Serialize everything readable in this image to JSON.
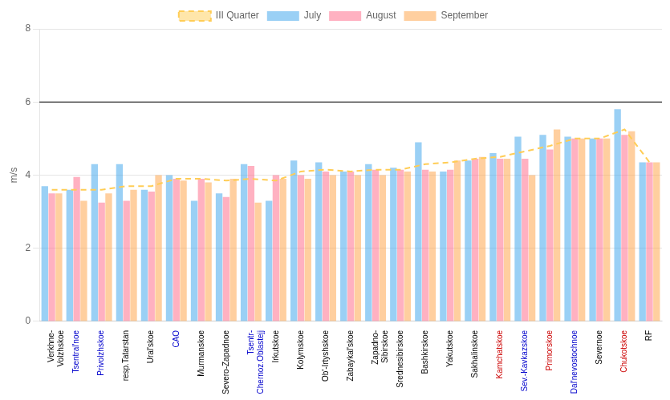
{
  "chart_data": {
    "type": "bar",
    "categories": [
      "Verkhne-\nVolzhskoe",
      "Tsentral'noe",
      "Privolzhskoe",
      "resp.Tatarstan",
      "Ural'skoe",
      "CAO",
      "Murmanskoe",
      "Severo-Zapadnoe",
      "Tsentr-\nChernoz.Oblastejj",
      "Irkutskoe",
      "Kolymskoe",
      "Ob'-Irtyshskoe",
      "Zabaykal'skoe",
      "Zapadno-\nSibirskoe",
      "Srednesibirskoe",
      "Bashkirskoe",
      "Yakutskoe",
      "Sakhalinskoe",
      "Kamchatskoe",
      "Sev.-Kavkazskoe",
      "Primorskoe",
      "Dal'nevostochnoe",
      "Severnoe",
      "Chukotskoe",
      "RF"
    ],
    "series": [
      {
        "name": "July",
        "values": [
          3.7,
          3.6,
          4.3,
          4.3,
          3.6,
          4.0,
          3.3,
          3.5,
          4.3,
          3.3,
          4.4,
          4.35,
          4.1,
          4.3,
          4.2,
          4.9,
          4.1,
          4.4,
          4.6,
          5.05,
          5.1,
          5.05,
          5.0,
          5.8,
          4.35
        ]
      },
      {
        "name": "August",
        "values": [
          3.5,
          3.95,
          3.25,
          3.3,
          3.55,
          3.9,
          3.9,
          3.4,
          4.25,
          4.0,
          4.0,
          4.1,
          4.1,
          4.15,
          4.15,
          4.15,
          4.15,
          4.45,
          4.45,
          4.45,
          4.7,
          5.0,
          5.0,
          5.1,
          4.35
        ]
      },
      {
        "name": "September",
        "values": [
          3.5,
          3.3,
          3.5,
          3.6,
          4.0,
          3.85,
          3.8,
          3.9,
          3.25,
          3.9,
          3.9,
          4.0,
          4.0,
          4.0,
          4.1,
          4.1,
          4.4,
          4.5,
          4.45,
          4.0,
          5.25,
          5.0,
          5.0,
          5.2,
          4.35
        ]
      },
      {
        "name": "III Quarter",
        "type": "line",
        "line_style": "dashed",
        "values": [
          3.6,
          3.6,
          3.6,
          3.7,
          3.7,
          3.9,
          3.9,
          3.85,
          3.9,
          3.85,
          4.1,
          4.15,
          4.1,
          4.15,
          4.15,
          4.3,
          4.35,
          4.45,
          4.5,
          4.65,
          4.8,
          5.0,
          5.0,
          5.25,
          4.35
        ]
      }
    ],
    "ylabel": "m/s",
    "ylim": [
      0,
      8
    ],
    "yticks": [
      0,
      2,
      4,
      6,
      8
    ],
    "grid": true,
    "legend": "top",
    "reference_line": {
      "y": 6.0,
      "color": "#000000"
    },
    "category_label_colors": [
      "#000000",
      "#0000cc",
      "#0000cc",
      "#000000",
      "#000000",
      "#0000cc",
      "#000000",
      "#000000",
      "#0000cc",
      "#000000",
      "#000000",
      "#000000",
      "#000000",
      "#000000",
      "#000000",
      "#000000",
      "#000000",
      "#000000",
      "#cc0000",
      "#0000cc",
      "#cc0000",
      "#0000cc",
      "#000000",
      "#cc0000",
      "#000000"
    ]
  }
}
